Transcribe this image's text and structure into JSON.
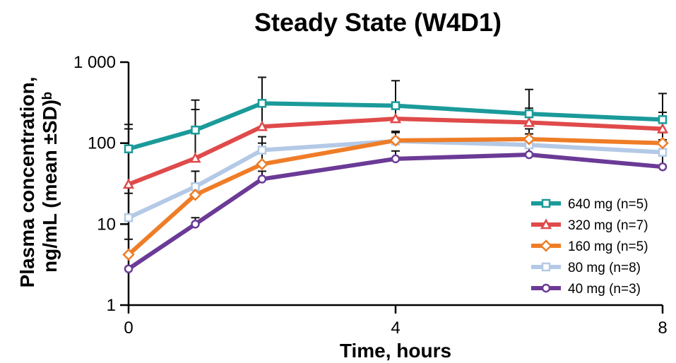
{
  "chart_data": {
    "type": "line",
    "title": "Steady State (W4D1)",
    "xlabel": "Time, hours",
    "ylabel_line1": "Plasma concentration,",
    "ylabel_line2": "ng/mL (mean ±SD)ᵇ",
    "x_ticks": [
      0,
      4,
      8
    ],
    "x_tick_labels": [
      "0",
      "4",
      "8"
    ],
    "y_scale": "log",
    "y_ticks": [
      1,
      10,
      100,
      1000
    ],
    "y_tick_labels": [
      "1",
      "10",
      "100",
      "1 000"
    ],
    "xlim": [
      0,
      8
    ],
    "ylim": [
      1,
      1000
    ],
    "grid": false,
    "legend_position": "bottom-right",
    "x": [
      0,
      1,
      2,
      4,
      6,
      8
    ],
    "series": [
      {
        "name": "640 mg (n=5)",
        "color": "#1b9a9a",
        "marker": "square",
        "values": [
          85,
          145,
          310,
          290,
          230,
          195
        ],
        "sd_upper": [
          170,
          340,
          650,
          590,
          460,
          410
        ]
      },
      {
        "name": "320 mg (n=7)",
        "color": "#e04a4a",
        "marker": "triangle",
        "values": [
          31,
          65,
          160,
          200,
          180,
          150
        ],
        "sd_upper": [
          150,
          260,
          300,
          280,
          270,
          240
        ]
      },
      {
        "name": "160 mg (n=5)",
        "color": "#ef7d27",
        "marker": "diamond",
        "values": [
          4.2,
          23,
          55,
          108,
          112,
          100
        ],
        "sd_upper": [
          12,
          45,
          100,
          140,
          150,
          135
        ]
      },
      {
        "name": "80 mg (n=8)",
        "color": "#b4c9e6",
        "marker": "square",
        "values": [
          12,
          29,
          82,
          106,
          95,
          77
        ],
        "sd_upper": [
          24,
          45,
          120,
          135,
          130,
          110
        ]
      },
      {
        "name": "40 mg (n=3)",
        "color": "#6b3a96",
        "marker": "circle",
        "values": [
          2.8,
          10,
          36,
          64,
          72,
          51
        ],
        "sd_upper": [
          6.5,
          12,
          45,
          80,
          90,
          70
        ]
      }
    ]
  }
}
